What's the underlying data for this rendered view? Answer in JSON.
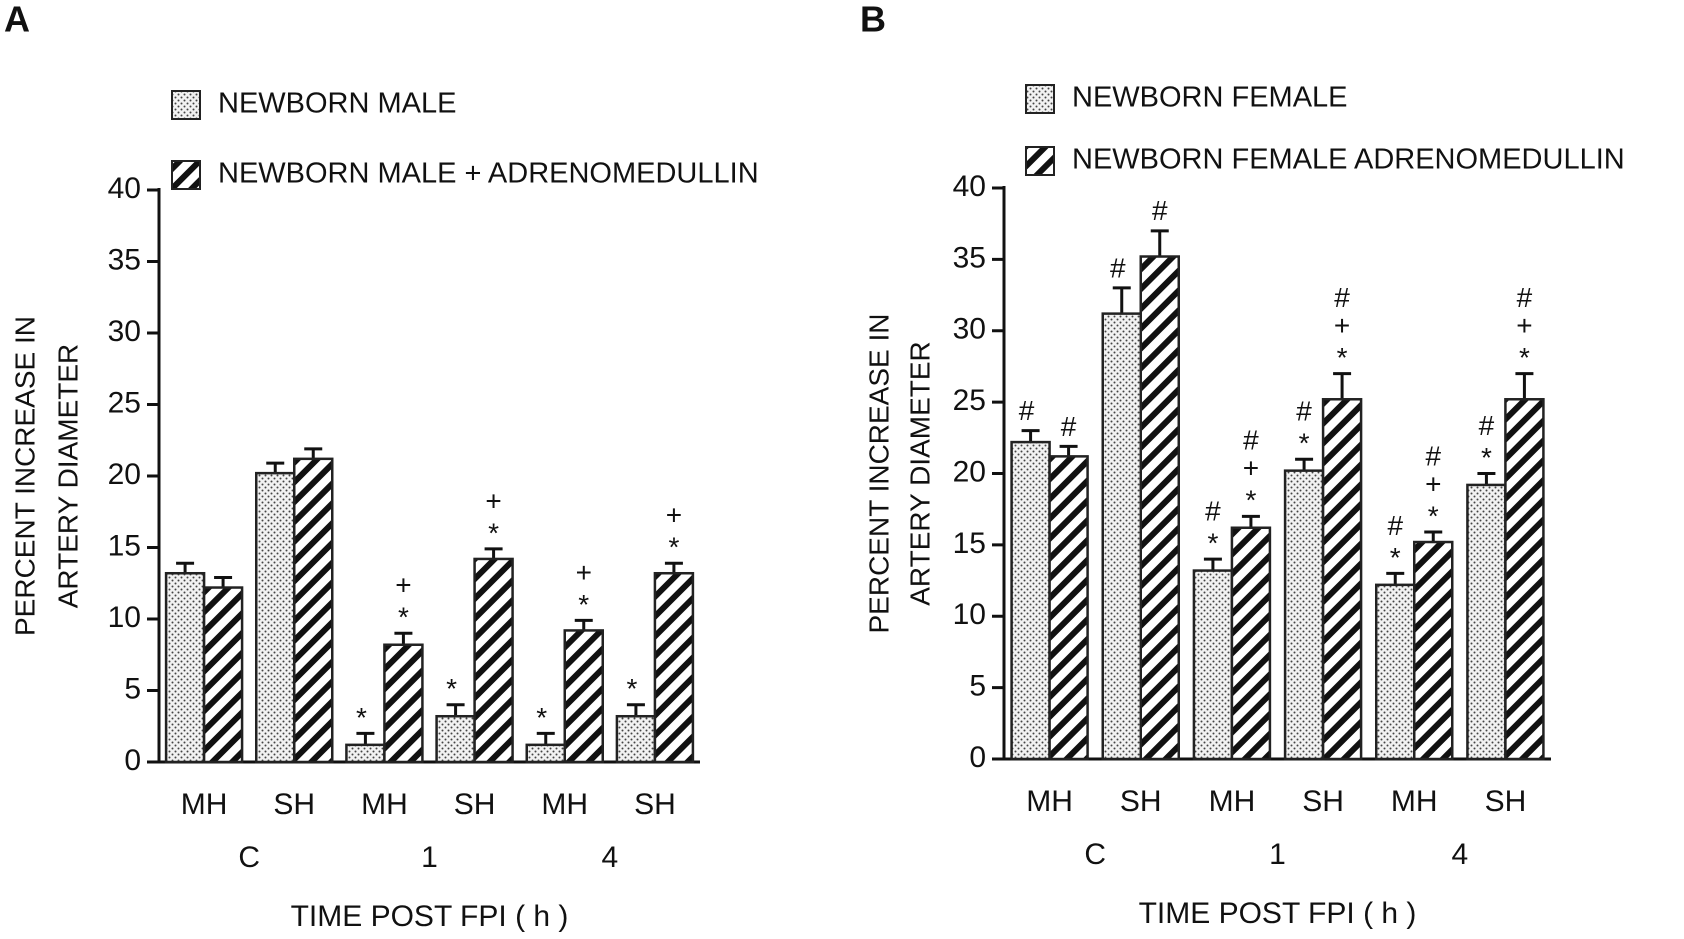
{
  "chart_data": [
    {
      "type": "bar",
      "panel": "A",
      "ylabel": [
        "PERCENT INCREASE IN",
        "ARTERY DIAMETER"
      ],
      "xlabel": "TIME POST FPI ( h )",
      "categories": [
        "MH",
        "SH",
        "MH",
        "SH",
        "MH",
        "SH"
      ],
      "groups": [
        "C",
        "1",
        "4"
      ],
      "ylim": [
        0,
        40
      ],
      "yticks": [
        0,
        5,
        10,
        15,
        20,
        25,
        30,
        35,
        40
      ],
      "series": [
        {
          "name": "NEWBORN MALE",
          "pattern": "dots",
          "color": "#222222",
          "values": [
            13.2,
            20.2,
            1.2,
            3.2,
            1.2,
            3.2
          ],
          "errors": [
            0.7,
            0.7,
            0.8,
            0.8,
            0.8,
            0.8
          ],
          "annotations": [
            null,
            null,
            [
              "*"
            ],
            [
              "*"
            ],
            [
              "*"
            ],
            [
              "*"
            ]
          ]
        },
        {
          "name": "NEWBORN MALE +  ADRENOMEDULLIN",
          "pattern": "hatch",
          "color": "#222222",
          "values": [
            12.2,
            21.2,
            8.2,
            14.2,
            9.2,
            13.2
          ],
          "errors": [
            0.7,
            0.7,
            0.8,
            0.7,
            0.7,
            0.7
          ],
          "annotations": [
            null,
            null,
            [
              "+",
              "*"
            ],
            [
              "+",
              "*"
            ],
            [
              "+",
              "*"
            ],
            [
              "+",
              "*"
            ]
          ]
        }
      ]
    },
    {
      "type": "bar",
      "panel": "B",
      "ylabel": [
        "PERCENT INCREASE IN",
        "ARTERY DIAMETER"
      ],
      "xlabel": "TIME POST FPI ( h )",
      "categories": [
        "MH",
        "SH",
        "MH",
        "SH",
        "MH",
        "SH"
      ],
      "groups": [
        "C",
        "1",
        "4"
      ],
      "ylim": [
        0,
        40
      ],
      "yticks": [
        0,
        5,
        10,
        15,
        20,
        25,
        30,
        35,
        40
      ],
      "series": [
        {
          "name": "NEWBORN FEMALE",
          "pattern": "dots",
          "color": "#222222",
          "values": [
            22.2,
            31.2,
            13.2,
            20.2,
            12.2,
            19.2
          ],
          "errors": [
            0.8,
            1.8,
            0.8,
            0.8,
            0.8,
            0.8
          ],
          "annotations": [
            [
              "#"
            ],
            [
              "#"
            ],
            [
              "#",
              "*"
            ],
            [
              "#",
              "*"
            ],
            [
              "#",
              "*"
            ],
            [
              "#",
              "*"
            ]
          ]
        },
        {
          "name": "NEWBORN FEMALE ADRENOMEDULLIN",
          "pattern": "hatch",
          "color": "#222222",
          "values": [
            21.2,
            35.2,
            16.2,
            25.2,
            15.2,
            25.2
          ],
          "errors": [
            0.7,
            1.8,
            0.8,
            1.8,
            0.7,
            1.8
          ],
          "annotations": [
            [
              "#"
            ],
            [
              "#"
            ],
            [
              "#",
              "+",
              "*"
            ],
            [
              "#",
              "+",
              "*"
            ],
            [
              "#",
              "+",
              "*"
            ],
            [
              "#",
              "+",
              "*"
            ]
          ]
        }
      ]
    }
  ]
}
